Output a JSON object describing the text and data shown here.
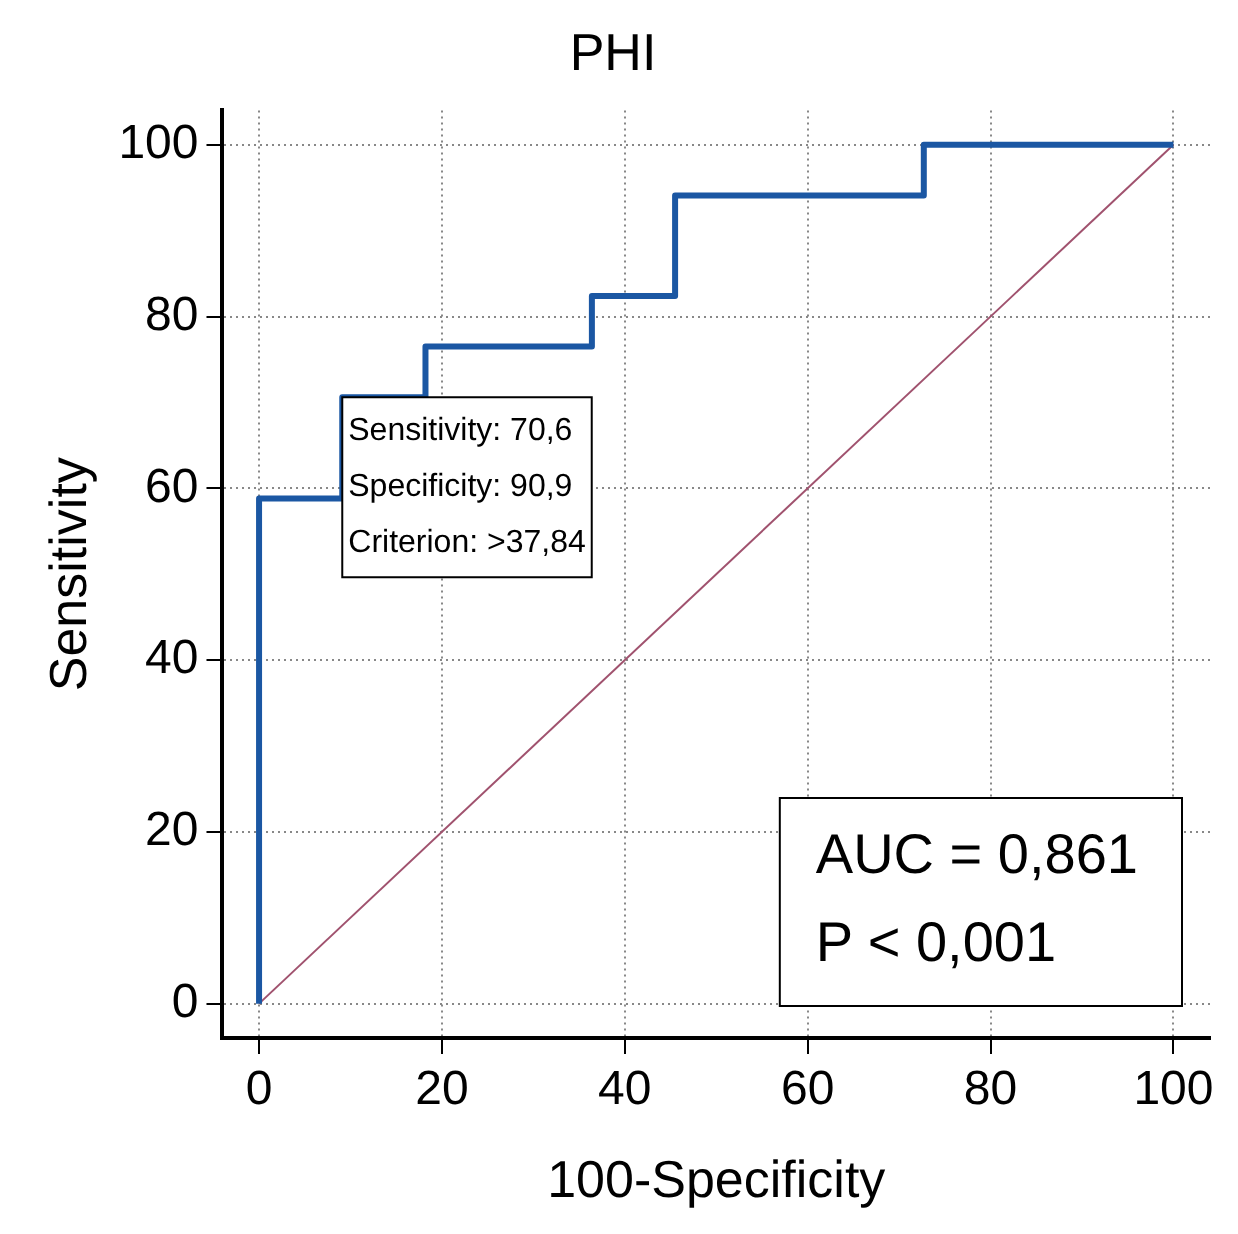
{
  "chart_data": {
    "type": "line",
    "title": "PHI",
    "xlabel": "100-Specificity",
    "ylabel": "Sensitivity",
    "xlim": [
      -4,
      104
    ],
    "ylim": [
      -4,
      104
    ],
    "xticks": [
      0,
      20,
      40,
      60,
      80,
      100
    ],
    "yticks": [
      0,
      20,
      40,
      60,
      80,
      100
    ],
    "grid": true,
    "legend": false,
    "marker": "none",
    "series": [
      {
        "type": "step",
        "color": "#1b57a3",
        "x": [
          0,
          0,
          9.1,
          18.2,
          36.4,
          45.5,
          72.7,
          100
        ],
        "values": [
          0,
          58.8,
          70.6,
          76.5,
          82.4,
          94.1,
          100,
          100
        ]
      },
      {
        "type": "line",
        "color": "#a0526e",
        "x": [
          0,
          100
        ],
        "values": [
          0,
          100
        ]
      }
    ],
    "annotations": [
      {
        "text": "Sensitivity: 70,6\nSpecificity: 90,9\nCriterion: >37,84",
        "x": 9.1,
        "y": 70.6
      },
      "AUC = 0,861\nP < 0,001"
    ]
  }
}
